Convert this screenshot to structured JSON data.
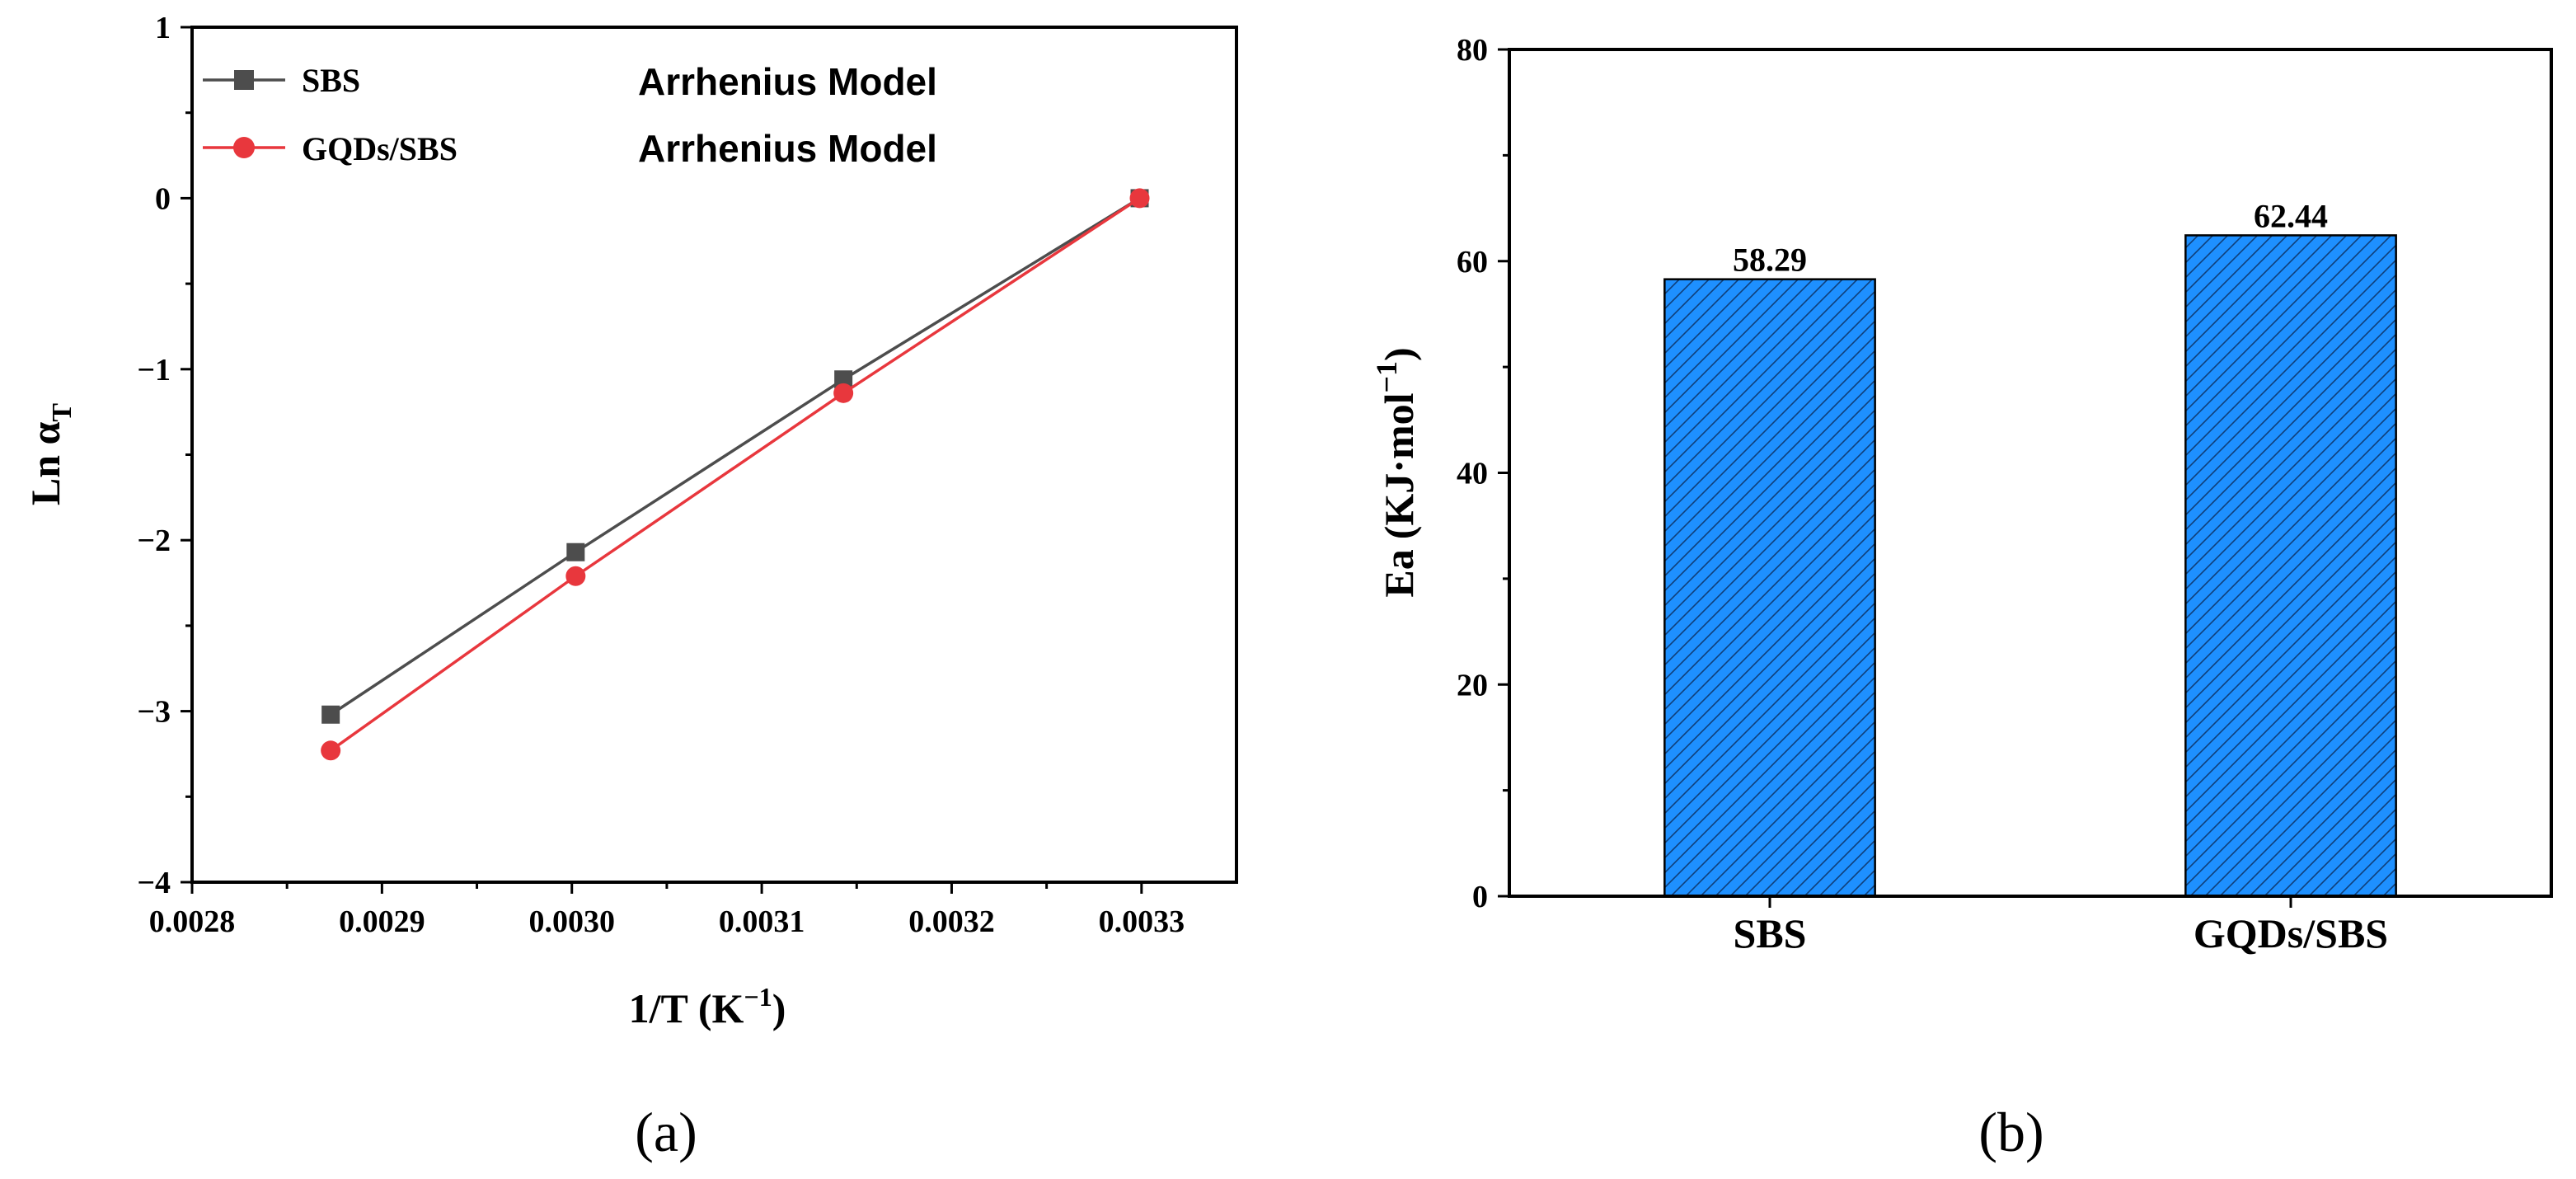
{
  "chart_data": [
    {
      "type": "line",
      "panel_label": "(a)",
      "xlabel": "1/T",
      "xunit_base": "K",
      "xunit_exp": "−1",
      "ylabel": "Ln α",
      "ylabel_sub": "T",
      "xlim": [
        0.0028,
        0.00335
      ],
      "ylim": [
        -4,
        1
      ],
      "xticks": [
        0.0028,
        0.0029,
        0.003,
        0.0031,
        0.0032,
        0.0033
      ],
      "xtick_labels": [
        "0.0028",
        "0.0029",
        "0.0030",
        "0.0031",
        "0.0032",
        "0.0033"
      ],
      "yticks": [
        -4,
        -3,
        -2,
        -1,
        0,
        1
      ],
      "ytick_labels": [
        "−4",
        "−3",
        "−2",
        "−1",
        "0",
        "1"
      ],
      "series": [
        {
          "name": "SBS",
          "legend_note": "Arrhenius Model",
          "color": "#4d4d4d",
          "marker": "square",
          "x": [
            0.002873,
            0.003002,
            0.003143,
            0.003299
          ],
          "y": [
            -3.02,
            -2.07,
            -1.06,
            0.0
          ]
        },
        {
          "name": "GQDs/SBS",
          "legend_note": "Arrhenius Model",
          "color": "#e8373d",
          "marker": "circle",
          "x": [
            0.002873,
            0.003002,
            0.003143,
            0.003299
          ],
          "y": [
            -3.23,
            -2.21,
            -1.14,
            0.0
          ]
        }
      ]
    },
    {
      "type": "bar",
      "panel_label": "(b)",
      "ylabel": "Ea",
      "yunit_main": "KJ·mol",
      "yunit_exp": "−1",
      "categories": [
        "SBS",
        "GQDs/SBS"
      ],
      "values": [
        58.29,
        62.44
      ],
      "value_labels": [
        "58.29",
        "62.44"
      ],
      "ylim": [
        0,
        80
      ],
      "yticks": [
        0,
        20,
        40,
        60,
        80
      ],
      "ytick_labels": [
        "0",
        "20",
        "40",
        "60",
        "80"
      ],
      "bar_color": "#1e90ff",
      "hatch": "diagonal"
    }
  ]
}
